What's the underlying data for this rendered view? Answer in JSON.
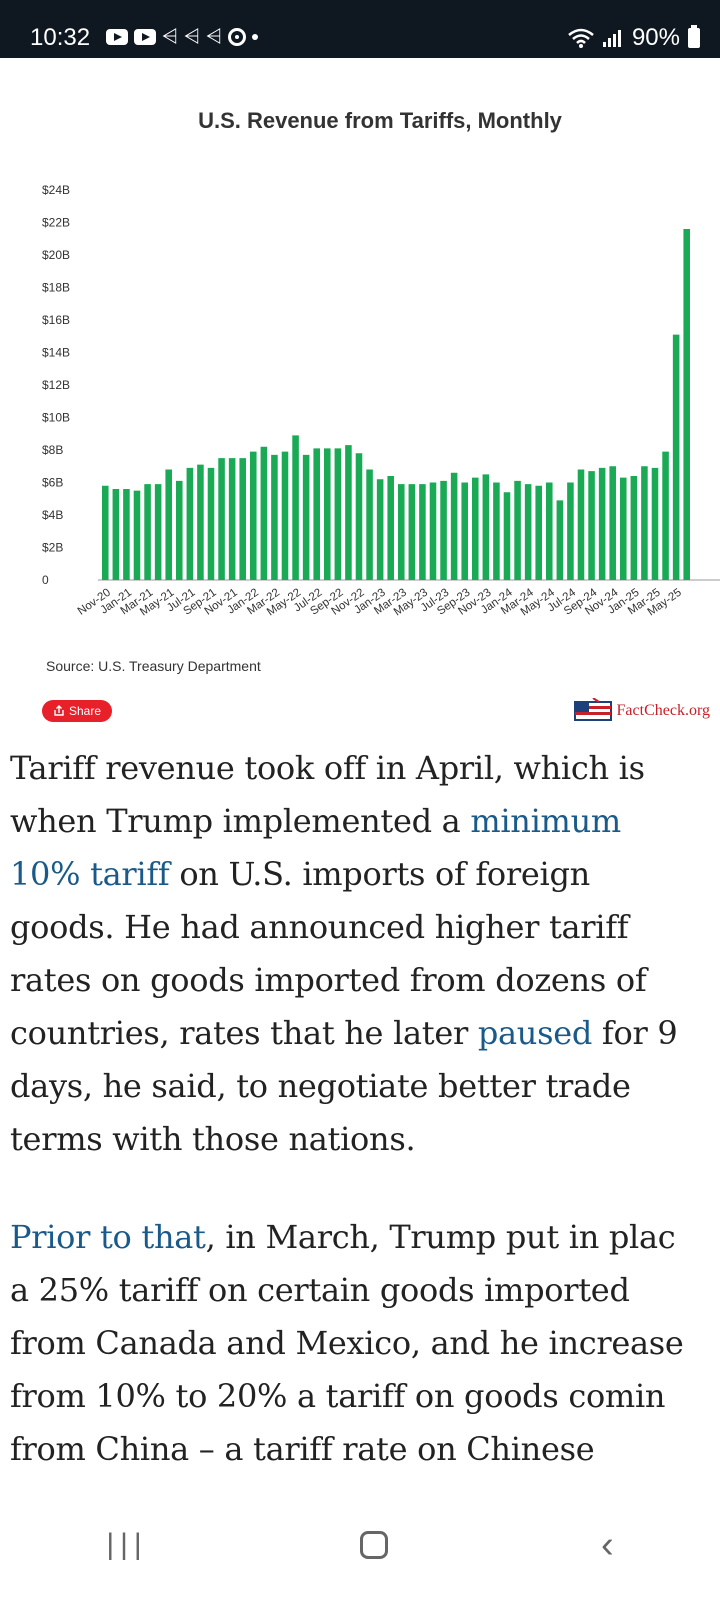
{
  "status_bar": {
    "time": "10:32",
    "battery": "90%"
  },
  "chart_data": {
    "type": "bar",
    "title": "U.S. Revenue from Tariffs, Monthly",
    "yticks": [
      "$24B",
      "$22B",
      "$20B",
      "$18B",
      "$16B",
      "$14B",
      "$12B",
      "$10B",
      "$8B",
      "$6B",
      "$4B",
      "$2B",
      "0"
    ],
    "ylim": [
      0,
      24
    ],
    "xlabels": [
      "Nov-20",
      "Jan-21",
      "Mar-21",
      "May-21",
      "Jul-21",
      "Sep-21",
      "Nov-21",
      "Jan-22",
      "Mar-22",
      "May-22",
      "Jul-22",
      "Sep-22",
      "Nov-22",
      "Jan-23",
      "Mar-23",
      "May-23",
      "Jul-23",
      "Sep-23",
      "Nov-23",
      "Jan-24",
      "Mar-24",
      "May-24",
      "Jul-24",
      "Sep-24",
      "Nov-24",
      "Jan-25",
      "Mar-25",
      "May-25"
    ],
    "values": [
      5.8,
      5.6,
      5.6,
      5.5,
      5.9,
      5.9,
      6.8,
      6.1,
      6.9,
      7.1,
      6.9,
      7.5,
      7.5,
      7.5,
      7.9,
      8.2,
      7.7,
      7.9,
      8.9,
      7.7,
      8.1,
      8.1,
      8.1,
      8.3,
      7.8,
      6.8,
      6.2,
      6.4,
      5.9,
      5.9,
      5.9,
      6.0,
      6.1,
      6.6,
      6.0,
      6.3,
      6.5,
      6.0,
      5.4,
      6.1,
      5.9,
      5.8,
      6.0,
      4.9,
      6.0,
      6.8,
      6.7,
      6.9,
      7.0,
      6.3,
      6.4,
      7.0,
      6.9,
      7.9,
      15.1,
      21.6
    ],
    "color": "#1aaa55",
    "grid": false,
    "legend": "none"
  },
  "source": "Source: U.S. Treasury Department",
  "share_label": "Share",
  "factcheck_logo": "FactCheck.org",
  "article": {
    "p1": [
      [
        {
          "t": "Tariff revenue took off in April, which is"
        }
      ],
      [
        {
          "t": "when Trump implemented a "
        },
        {
          "t": "minimum",
          "link": true
        }
      ],
      [
        {
          "t": "10% tariff",
          "link": true
        },
        {
          "t": " on U.S. imports of foreign"
        }
      ],
      [
        {
          "t": "goods. He had announced higher tariff"
        }
      ],
      [
        {
          "t": "rates on goods imported from dozens of"
        }
      ],
      [
        {
          "t": "countries, rates that he later "
        },
        {
          "t": "paused",
          "link": true
        },
        {
          "t": " for 9"
        }
      ],
      [
        {
          "t": "days, he said, to negotiate better trade"
        }
      ],
      [
        {
          "t": "terms with those nations."
        }
      ]
    ],
    "p2": [
      [
        {
          "t": "Prior to that",
          "link": true
        },
        {
          "t": ", in March, Trump put in plac"
        }
      ],
      [
        {
          "t": "a 25% tariff on certain goods imported"
        }
      ],
      [
        {
          "t": "from Canada and Mexico, and he increase"
        }
      ],
      [
        {
          "t": "from 10% to 20% a tariff on goods comin"
        }
      ],
      [
        {
          "t": "from China – a tariff rate on Chinese"
        }
      ]
    ]
  }
}
